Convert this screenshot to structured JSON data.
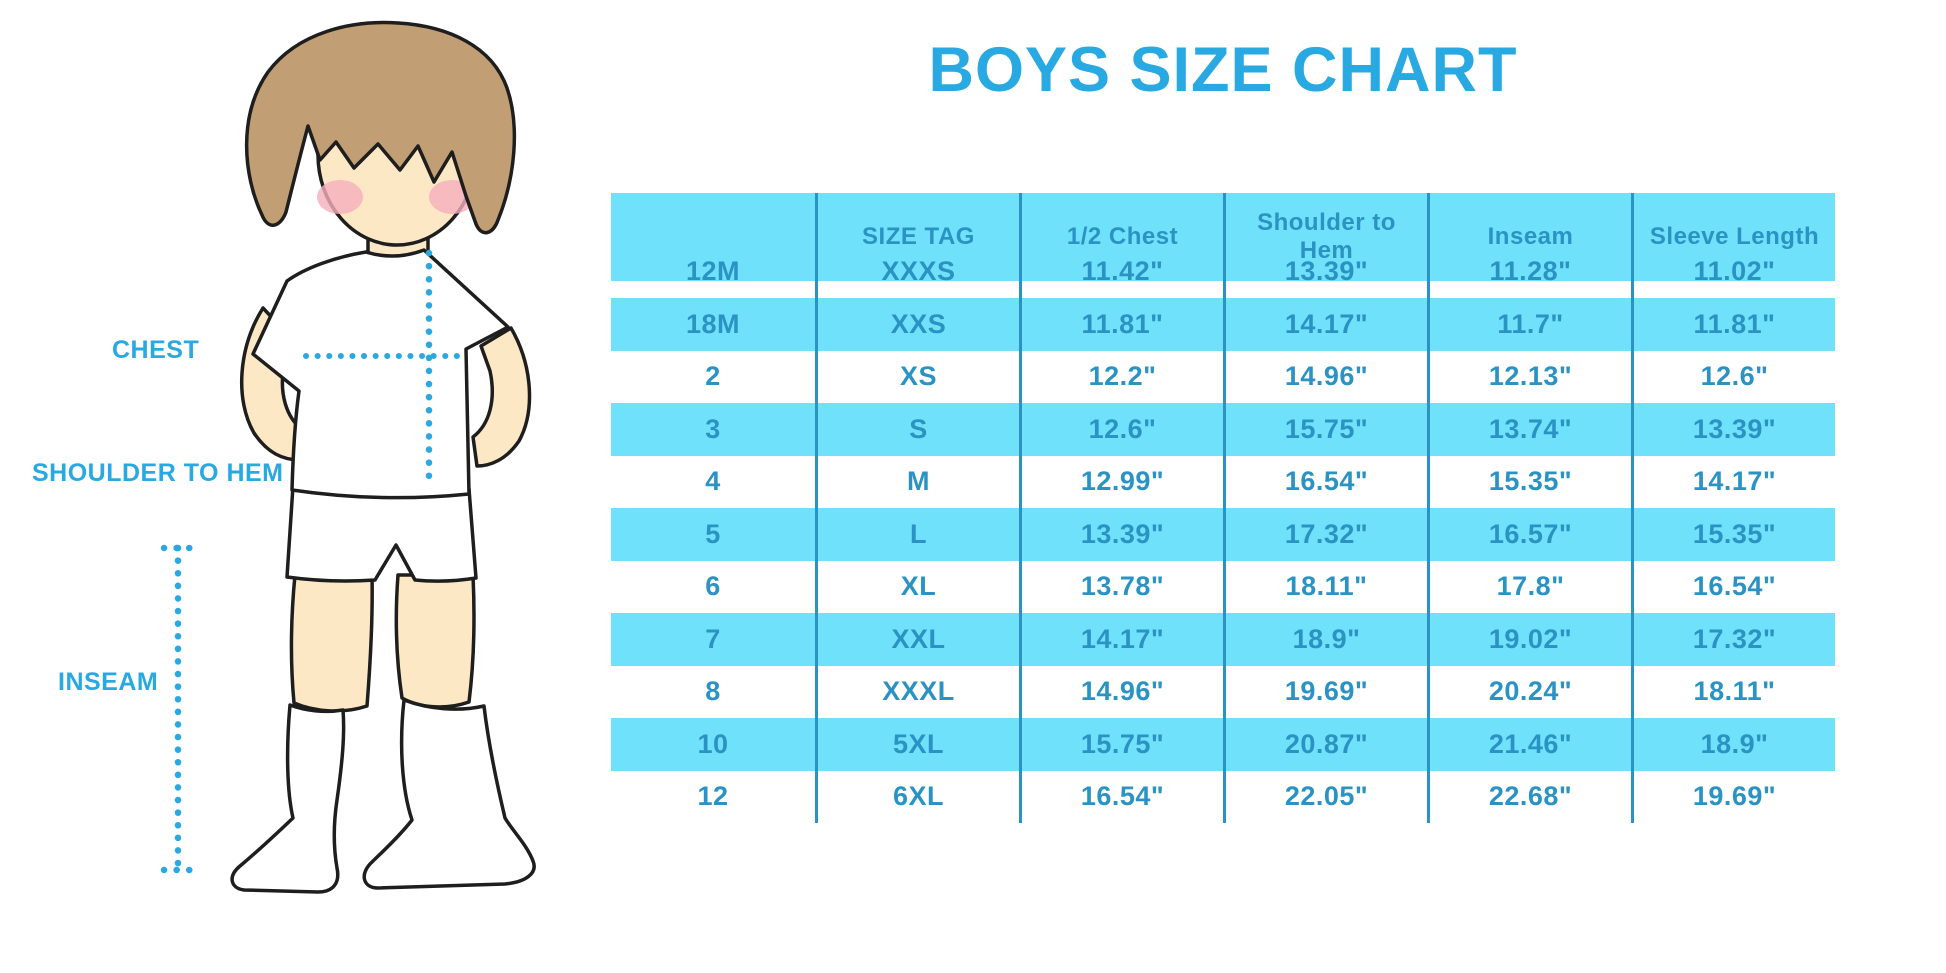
{
  "title": "BOYS SIZE CHART",
  "illustration": {
    "description": "cartoon boy in white t-shirt, shorts and knee socks with dotted measurement guides",
    "labels": {
      "chest": "CHEST",
      "shoulder_to_hem": "SHOULDER TO HEM",
      "inseam": "INSEAM"
    }
  },
  "chart_data": {
    "type": "table",
    "title": "BOYS SIZE CHART",
    "columns": [
      "",
      "SIZE TAG",
      "1/2 Chest",
      "Shoulder to Hem",
      "Inseam",
      "Sleeve Length"
    ],
    "rows": [
      [
        "12M",
        "XXXS",
        "11.42\"",
        "13.39\"",
        "11.28\"",
        "11.02\""
      ],
      [
        "18M",
        "XXS",
        "11.81\"",
        "14.17\"",
        "11.7\"",
        "11.81\""
      ],
      [
        "2",
        "XS",
        "12.2\"",
        "14.96\"",
        "12.13\"",
        "12.6\""
      ],
      [
        "3",
        "S",
        "12.6\"",
        "15.75\"",
        "13.74\"",
        "13.39\""
      ],
      [
        "4",
        "M",
        "12.99\"",
        "16.54\"",
        "15.35\"",
        "14.17\""
      ],
      [
        "5",
        "L",
        "13.39\"",
        "17.32\"",
        "16.57\"",
        "15.35\""
      ],
      [
        "6",
        "XL",
        "13.78\"",
        "18.11\"",
        "17.8\"",
        "16.54\""
      ],
      [
        "7",
        "XXL",
        "14.17\"",
        "18.9\"",
        "19.02\"",
        "17.32\""
      ],
      [
        "8",
        "XXXL",
        "14.96\"",
        "19.69\"",
        "20.24\"",
        "18.11\""
      ],
      [
        "10",
        "5XL",
        "15.75\"",
        "20.87\"",
        "21.46\"",
        "18.9\""
      ],
      [
        "12",
        "6XL",
        "16.54\"",
        "22.05\"",
        "22.68\"",
        "19.69\""
      ]
    ],
    "units": "inches",
    "row_striping": "alternating white / cyan starting with white",
    "layout": {
      "grid": false,
      "header_background": "#6FE1FA"
    }
  },
  "colors": {
    "title_blue": "#29A9E1",
    "stripe_cyan": "#6FE1FA",
    "table_text_blue": "#2B93C4",
    "dotted_line_blue": "#2BA8E0",
    "skin": "#FCE8C5",
    "hair": "#C19E74",
    "blush": "#F5AFBD",
    "outline": "#1E1E1E"
  }
}
